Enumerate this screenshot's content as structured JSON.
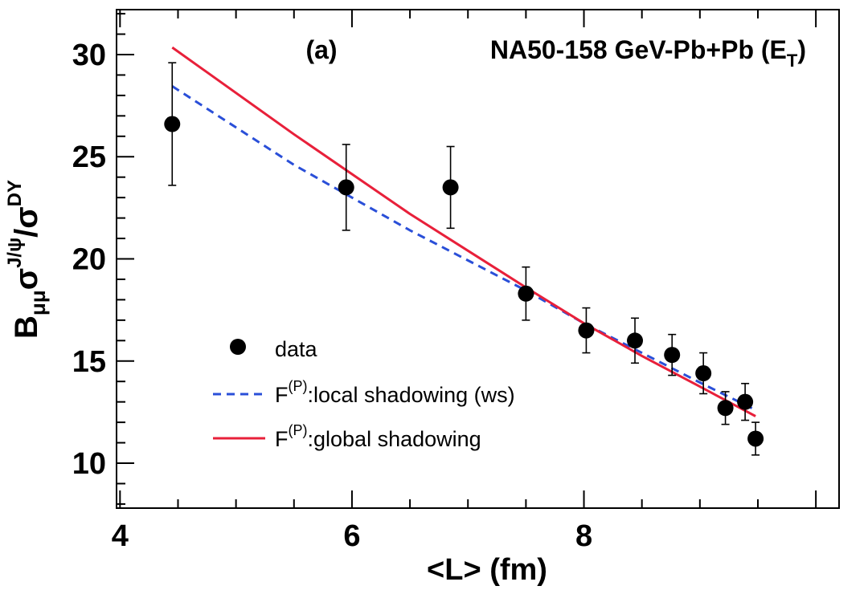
{
  "chart_data": {
    "type": "scatter",
    "panel_label": "(a)",
    "title": {
      "main": "NA50-158 GeV-Pb+Pb (E",
      "sub": "T",
      "close": ")"
    },
    "xlabel": "<L> (fm)",
    "ylabel": {
      "B": "B",
      "B_sub": "μμ",
      "sigma1": "σ",
      "sigma1_sup": "J/ψ",
      "slash": "/",
      "sigma2": "σ",
      "sigma2_sup": "DY"
    },
    "xlim": [
      3.97,
      10.2
    ],
    "ylim": [
      7.8,
      32.2
    ],
    "x_ticks": [
      4,
      6,
      8
    ],
    "y_ticks": [
      10,
      15,
      20,
      25,
      30
    ],
    "grid": false,
    "legend_position": "bottom-left",
    "series": [
      {
        "name": "data",
        "kind": "points",
        "color": "#000000",
        "points": [
          {
            "x": 4.45,
            "y": 26.6,
            "err": 3.0
          },
          {
            "x": 5.95,
            "y": 23.5,
            "err": 2.1
          },
          {
            "x": 6.85,
            "y": 23.5,
            "err": 2.0
          },
          {
            "x": 7.5,
            "y": 18.3,
            "err": 1.3
          },
          {
            "x": 8.02,
            "y": 16.5,
            "err": 1.1
          },
          {
            "x": 8.44,
            "y": 16.0,
            "err": 1.1
          },
          {
            "x": 8.76,
            "y": 15.3,
            "err": 1.0
          },
          {
            "x": 9.03,
            "y": 14.4,
            "err": 1.0
          },
          {
            "x": 9.22,
            "y": 12.7,
            "err": 0.8
          },
          {
            "x": 9.39,
            "y": 13.0,
            "err": 0.9
          },
          {
            "x": 9.48,
            "y": 11.2,
            "err": 0.8
          }
        ]
      },
      {
        "name_main": "F",
        "name_sup": "(P)",
        "name_rest": ":local shadowing (ws)",
        "kind": "line",
        "style": "dashed",
        "color": "#2a4fd8",
        "points": [
          {
            "x": 4.45,
            "y": 28.45
          },
          {
            "x": 5.5,
            "y": 24.6
          },
          {
            "x": 6.5,
            "y": 21.4
          },
          {
            "x": 7.5,
            "y": 18.45
          },
          {
            "x": 8.0,
            "y": 16.85
          },
          {
            "x": 8.5,
            "y": 15.4
          },
          {
            "x": 9.0,
            "y": 13.95
          },
          {
            "x": 9.48,
            "y": 12.6
          }
        ]
      },
      {
        "name_main": "F",
        "name_sup": "(P)",
        "name_rest": ":global shadowing",
        "kind": "line",
        "style": "solid",
        "color": "#e8203a",
        "points": [
          {
            "x": 4.45,
            "y": 30.35
          },
          {
            "x": 5.5,
            "y": 26.1
          },
          {
            "x": 6.5,
            "y": 22.2
          },
          {
            "x": 7.0,
            "y": 20.4
          },
          {
            "x": 7.5,
            "y": 18.6
          },
          {
            "x": 8.0,
            "y": 16.85
          },
          {
            "x": 8.5,
            "y": 15.25
          },
          {
            "x": 9.0,
            "y": 13.75
          },
          {
            "x": 9.48,
            "y": 12.3
          }
        ]
      }
    ]
  }
}
